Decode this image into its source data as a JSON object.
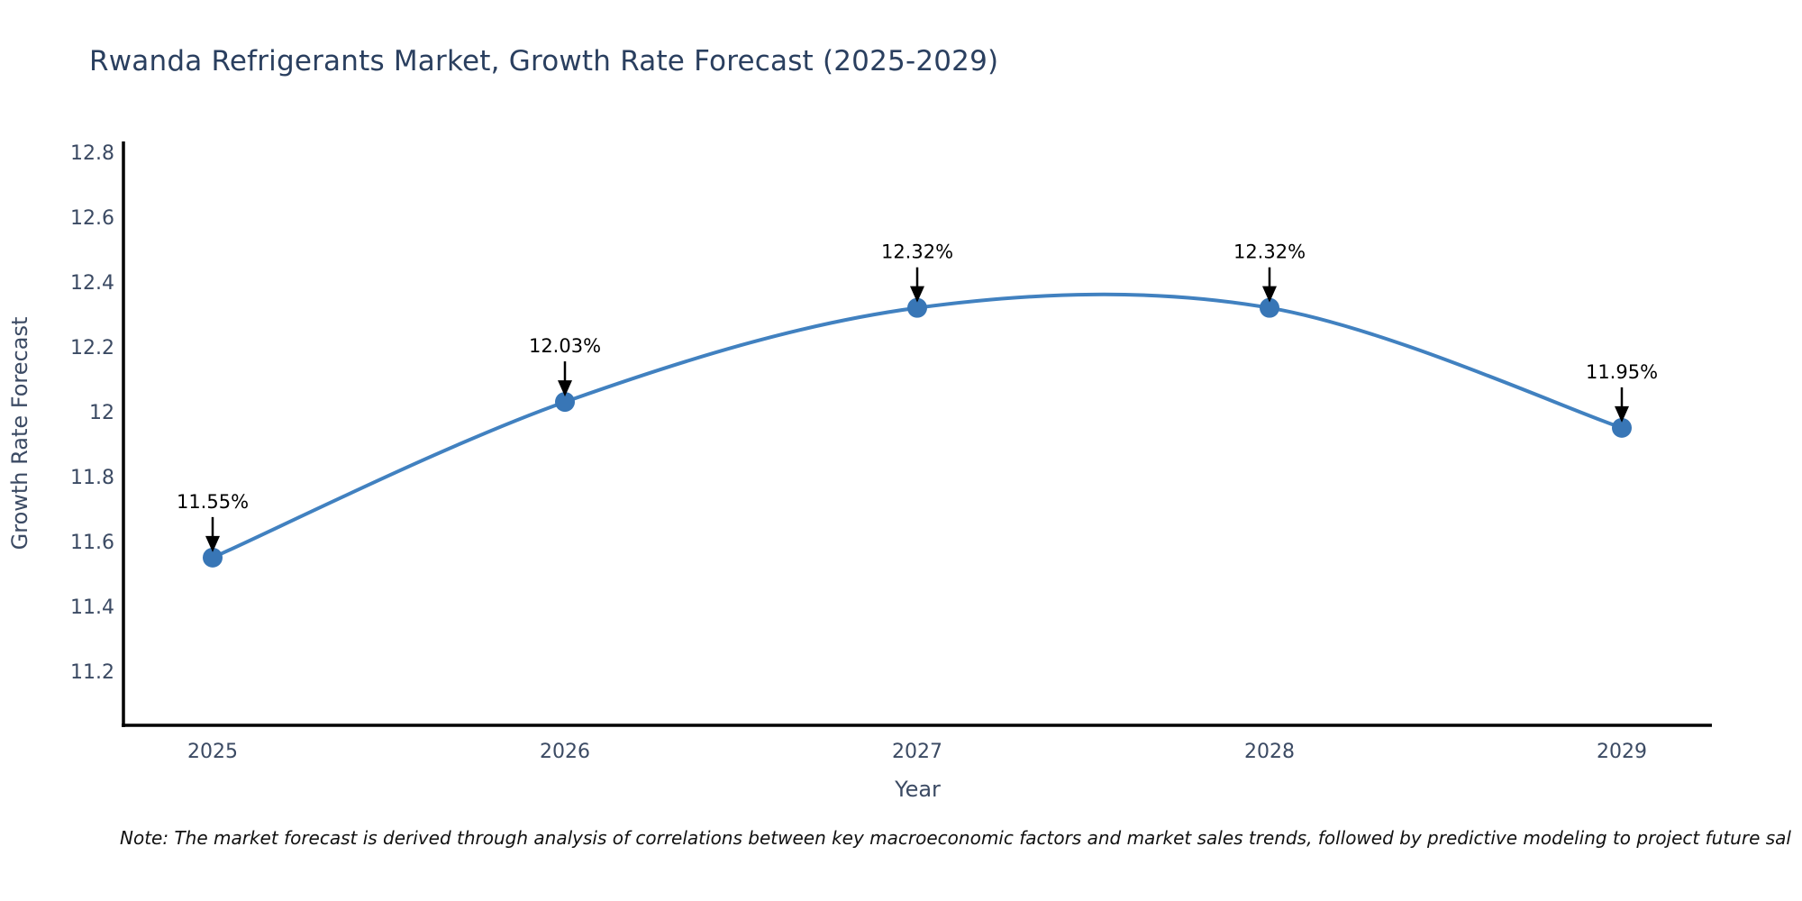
{
  "chart_data": {
    "type": "line",
    "title": "Rwanda Refrigerants Market, Growth Rate Forecast (2025-2029)",
    "xlabel": "Year",
    "ylabel": "Growth Rate Forecast",
    "x": [
      2025,
      2026,
      2027,
      2028,
      2029
    ],
    "series": [
      {
        "name": "Growth Rate Forecast",
        "values": [
          11.55,
          12.03,
          12.32,
          12.32,
          11.95
        ]
      }
    ],
    "point_labels": [
      "11.55%",
      "12.03%",
      "12.32%",
      "12.32%",
      "11.95%"
    ],
    "yticks": [
      11.2,
      11.4,
      11.6,
      11.8,
      12,
      12.2,
      12.4,
      12.6,
      12.8
    ],
    "ylim": [
      11.033,
      12.833
    ],
    "line_shape": "spline",
    "grid": false,
    "legend": "none",
    "colors": {
      "line": "#4181c0",
      "marker": "#3876b6",
      "axis": "#000000",
      "title": "#2a3f5f",
      "tick": "#3b4a63",
      "axis_label": "#3b4a63",
      "annotation": "#000000"
    }
  },
  "note": "Note: The market forecast is derived through analysis of correlations between key macroeconomic factors and market sales trends, followed by predictive modeling to project future sal"
}
